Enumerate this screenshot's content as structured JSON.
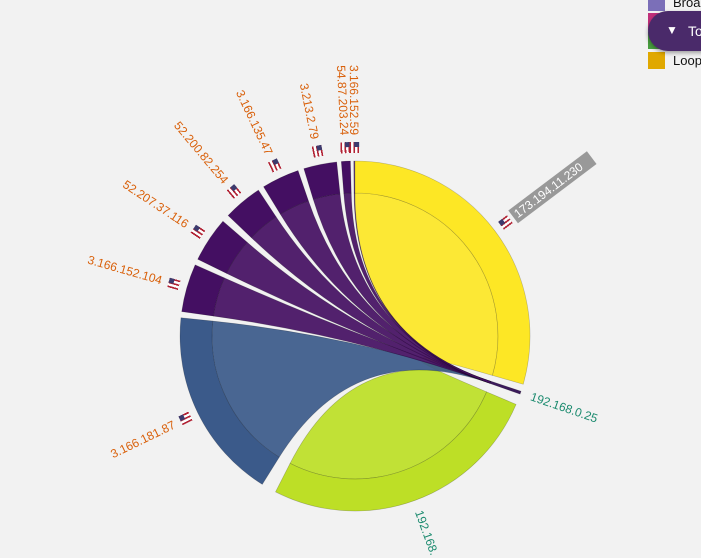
{
  "diagram": {
    "type": "chord",
    "target_node": "192.168.0.25",
    "nodes": [
      {
        "ip": "173.194.11.230",
        "flag": "us",
        "value": 120,
        "color": "#fde725",
        "label_color": "#ffffff",
        "label_bg": "#999999",
        "highlighted": true
      },
      {
        "ip": "192.168.0.25",
        "flag": "",
        "value": 1,
        "color": "#3b1a5a",
        "label_color": "#1a8a6e",
        "label_bg": "",
        "highlighted": false
      },
      {
        "ip": "192.168.",
        "flag": "",
        "value": 86,
        "color": "#bddf26",
        "label_color": "#1a8a6e",
        "label_bg": "",
        "highlighted": false
      },
      {
        "ip": "3.166.181.87",
        "flag": "us",
        "value": 58,
        "color": "#3b5a8a",
        "label_color": "#d9600a",
        "label_bg": "",
        "highlighted": false
      },
      {
        "ip": "3.166.152.104",
        "flag": "us",
        "value": 17,
        "color": "#440f62",
        "label_color": "#d9600a",
        "label_bg": "",
        "highlighted": false
      },
      {
        "ip": "52.207.37.116",
        "flag": "us",
        "value": 16,
        "color": "#440f62",
        "label_color": "#d9600a",
        "label_bg": "",
        "highlighted": false
      },
      {
        "ip": "52.200.82.254",
        "flag": "us",
        "value": 16,
        "color": "#440f62",
        "label_color": "#d9600a",
        "label_bg": "",
        "highlighted": false
      },
      {
        "ip": "3.166.135.47",
        "flag": "us",
        "value": 15,
        "color": "#440f62",
        "label_color": "#d9600a",
        "label_bg": "",
        "highlighted": false
      },
      {
        "ip": "3.213.2.79",
        "flag": "us",
        "value": 15,
        "color": "#440f62",
        "label_color": "#d9600a",
        "label_bg": "",
        "highlighted": false
      },
      {
        "ip": "54.87.203.24",
        "flag": "us",
        "value": 15,
        "color": "#440f62",
        "label_color": "#d9600a",
        "label_bg": "",
        "highlighted": false
      },
      {
        "ip": "3.166.152.59",
        "flag": "us",
        "value": 12,
        "color": "#440f62",
        "label_color": "#d9600a",
        "label_bg": "",
        "highlighted": false
      }
    ]
  },
  "legend": {
    "items": [
      {
        "label": "Broa",
        "color": "#7b6fb8"
      },
      {
        "label": "",
        "color": "#c0307a"
      },
      {
        "label": "",
        "color": "#4aa040"
      },
      {
        "label": "Loop",
        "color": "#e0a800"
      }
    ]
  },
  "toggle": {
    "arrow": "▼",
    "label": "To"
  }
}
